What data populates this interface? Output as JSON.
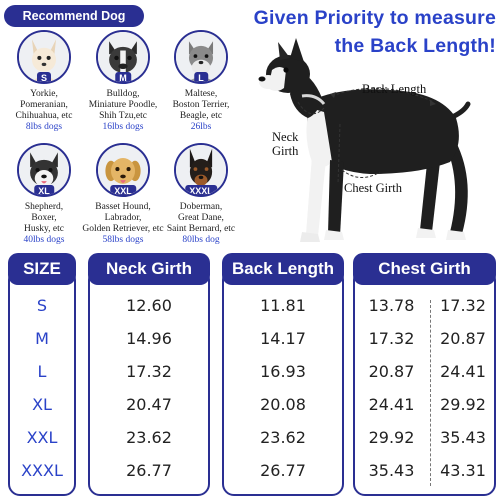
{
  "recommend": {
    "label": "Recommend Dog"
  },
  "headline": {
    "line1": "Given Priority to measure",
    "line2": "the Back Length!"
  },
  "dogs": [
    {
      "size": "S",
      "breeds": [
        "Yorkie,",
        "Pomeranian,",
        "Chihuahua, etc"
      ],
      "weight": "8lbs dogs"
    },
    {
      "size": "M",
      "breeds": [
        "Bulldog,",
        "Miniature Poodle,",
        "Shih Tzu,etc"
      ],
      "weight": "16lbs dogs"
    },
    {
      "size": "L",
      "breeds": [
        "Maltese,",
        "Boston Terrier,",
        "Beagle, etc"
      ],
      "weight": "26lbs"
    },
    {
      "size": "XL",
      "breeds": [
        "Shepherd,",
        "Boxer,",
        "Husky, etc"
      ],
      "weight": "40lbs dogs"
    },
    {
      "size": "XXL",
      "breeds": [
        "Basset Hound,",
        "Labrador,",
        "Golden Retriever, etc"
      ],
      "weight": "58lbs dogs"
    },
    {
      "size": "XXXL",
      "breeds": [
        "Doberman,",
        "Great Dane,",
        "Saint Bernard, etc"
      ],
      "weight": "80lbs dog"
    }
  ],
  "measurements": {
    "back": "Back Length",
    "neck_line1": "Neck",
    "neck_line2": "Girth",
    "chest": "Chest Girth"
  },
  "table": {
    "headers": {
      "size": "SIZE",
      "neck": "Neck Girth",
      "back": "Back Length",
      "chest": "Chest Girth"
    },
    "rows": [
      {
        "size": "S",
        "neck": "12.60",
        "back": "11.81",
        "chest_min": "13.78",
        "chest_max": "17.32"
      },
      {
        "size": "M",
        "neck": "14.96",
        "back": "14.17",
        "chest_min": "17.32",
        "chest_max": "20.87"
      },
      {
        "size": "L",
        "neck": "17.32",
        "back": "16.93",
        "chest_min": "20.87",
        "chest_max": "24.41"
      },
      {
        "size": "XL",
        "neck": "20.47",
        "back": "20.08",
        "chest_min": "24.41",
        "chest_max": "29.92"
      },
      {
        "size": "XXL",
        "neck": "23.62",
        "back": "23.62",
        "chest_min": "29.92",
        "chest_max": "35.43"
      },
      {
        "size": "XXXL",
        "neck": "26.77",
        "back": "26.77",
        "chest_min": "35.43",
        "chest_max": "43.31"
      }
    ]
  },
  "colors": {
    "navy": "#2a2f92",
    "blue_text": "#2a42c8"
  },
  "icons": [
    "chihuahua-icon",
    "bulldog-icon",
    "schnauzer-icon",
    "husky-icon",
    "golden-retriever-icon",
    "doberman-icon",
    "boston-terrier-illustration"
  ]
}
